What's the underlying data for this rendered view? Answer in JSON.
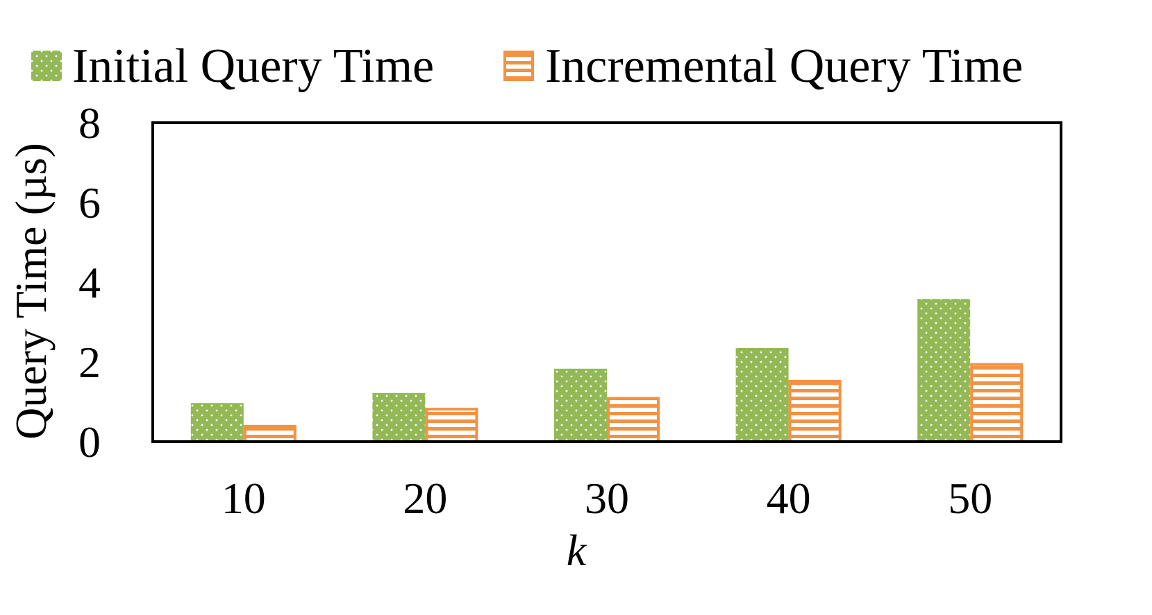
{
  "chart_data": {
    "type": "bar",
    "title": "",
    "xlabel": "k",
    "ylabel": "Query Time (µs)",
    "ylim": [
      0,
      8
    ],
    "yticks": [
      "0",
      "2",
      "4",
      "6",
      "8"
    ],
    "categories": [
      "10",
      "20",
      "30",
      "40",
      "50"
    ],
    "series": [
      {
        "name": "Initial Query Time",
        "values": [
          0.97,
          1.22,
          1.83,
          2.35,
          3.58
        ],
        "color": "#93b957",
        "pattern": "dotted"
      },
      {
        "name": "Incremental Query Time",
        "values": [
          0.42,
          0.85,
          1.12,
          1.55,
          1.97
        ],
        "color": "#f29244",
        "pattern": "horizontal-stripes"
      }
    ],
    "grid": false,
    "legend_position": "top"
  }
}
